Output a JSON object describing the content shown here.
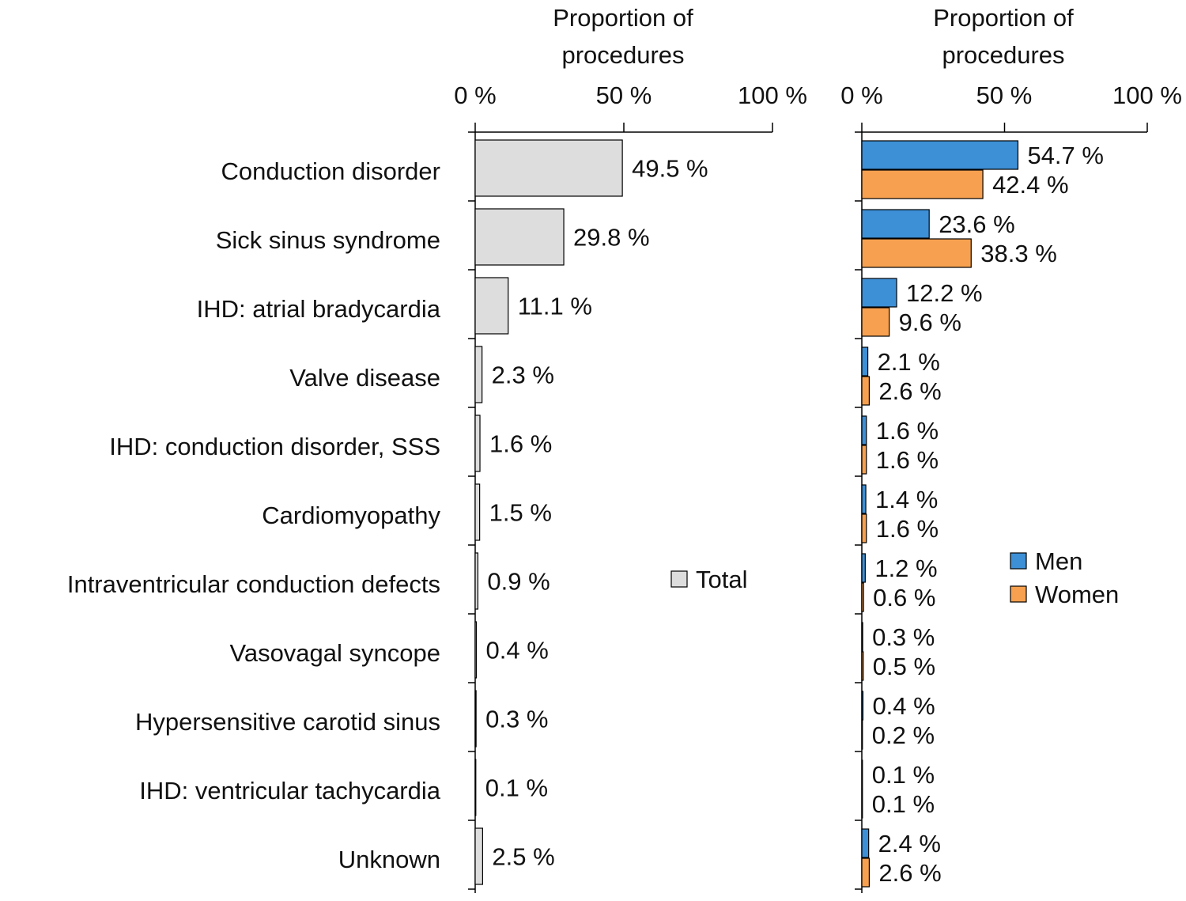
{
  "chart_data": [
    {
      "type": "bar",
      "orientation": "horizontal",
      "panel": "left",
      "axis_title_line1": "Proportion of",
      "axis_title_line2": "procedures",
      "xlim": [
        0,
        100
      ],
      "ticks": [
        0,
        50,
        100
      ],
      "tick_labels": [
        "0 %",
        "50 %",
        "100 %"
      ],
      "categories": [
        "Conduction disorder",
        "Sick sinus syndrome",
        "IHD: atrial bradycardia",
        "Valve disease",
        "IHD: conduction disorder, SSS",
        "Cardiomyopathy",
        "Intraventricular conduction defects",
        "Vasovagal syncope",
        "Hypersensitive carotid sinus",
        "IHD: ventricular tachycardia",
        "Unknown"
      ],
      "series": [
        {
          "name": "Total",
          "color": "#dddddd",
          "values": [
            49.5,
            29.8,
            11.1,
            2.3,
            1.6,
            1.5,
            0.9,
            0.4,
            0.3,
            0.1,
            2.5
          ],
          "labels": [
            "49.5 %",
            "29.8 %",
            "11.1 %",
            "2.3 %",
            "1.6 %",
            "1.5 %",
            "0.9 %",
            "0.4 %",
            "0.3 %",
            "0.1 %",
            "2.5 %"
          ]
        }
      ],
      "legend": {
        "position": "right",
        "items": [
          "Total"
        ]
      }
    },
    {
      "type": "bar",
      "orientation": "horizontal",
      "panel": "right",
      "axis_title_line1": "Proportion of",
      "axis_title_line2": "procedures",
      "xlim": [
        0,
        100
      ],
      "ticks": [
        0,
        50,
        100
      ],
      "tick_labels": [
        "0 %",
        "50 %",
        "100 %"
      ],
      "series": [
        {
          "name": "Men",
          "color": "#3d8fd6",
          "values": [
            54.7,
            23.6,
            12.2,
            2.1,
            1.6,
            1.4,
            1.2,
            0.3,
            0.4,
            0.1,
            2.4
          ],
          "labels": [
            "54.7 %",
            "23.6 %",
            "12.2 %",
            "2.1 %",
            "1.6 %",
            "1.4 %",
            "1.2 %",
            "0.3 %",
            "0.4 %",
            "0.1 %",
            "2.4 %"
          ]
        },
        {
          "name": "Women",
          "color": "#f7a04f",
          "values": [
            42.4,
            38.3,
            9.6,
            2.6,
            1.6,
            1.6,
            0.6,
            0.5,
            0.2,
            0.1,
            2.6
          ],
          "labels": [
            "42.4 %",
            "38.3 %",
            "9.6 %",
            "2.6 %",
            "1.6 %",
            "1.6 %",
            "0.6 %",
            "0.5 %",
            "0.2 %",
            "0.1 %",
            "2.6 %"
          ]
        }
      ],
      "legend": {
        "position": "right",
        "items": [
          "Men",
          "Women"
        ]
      }
    }
  ]
}
